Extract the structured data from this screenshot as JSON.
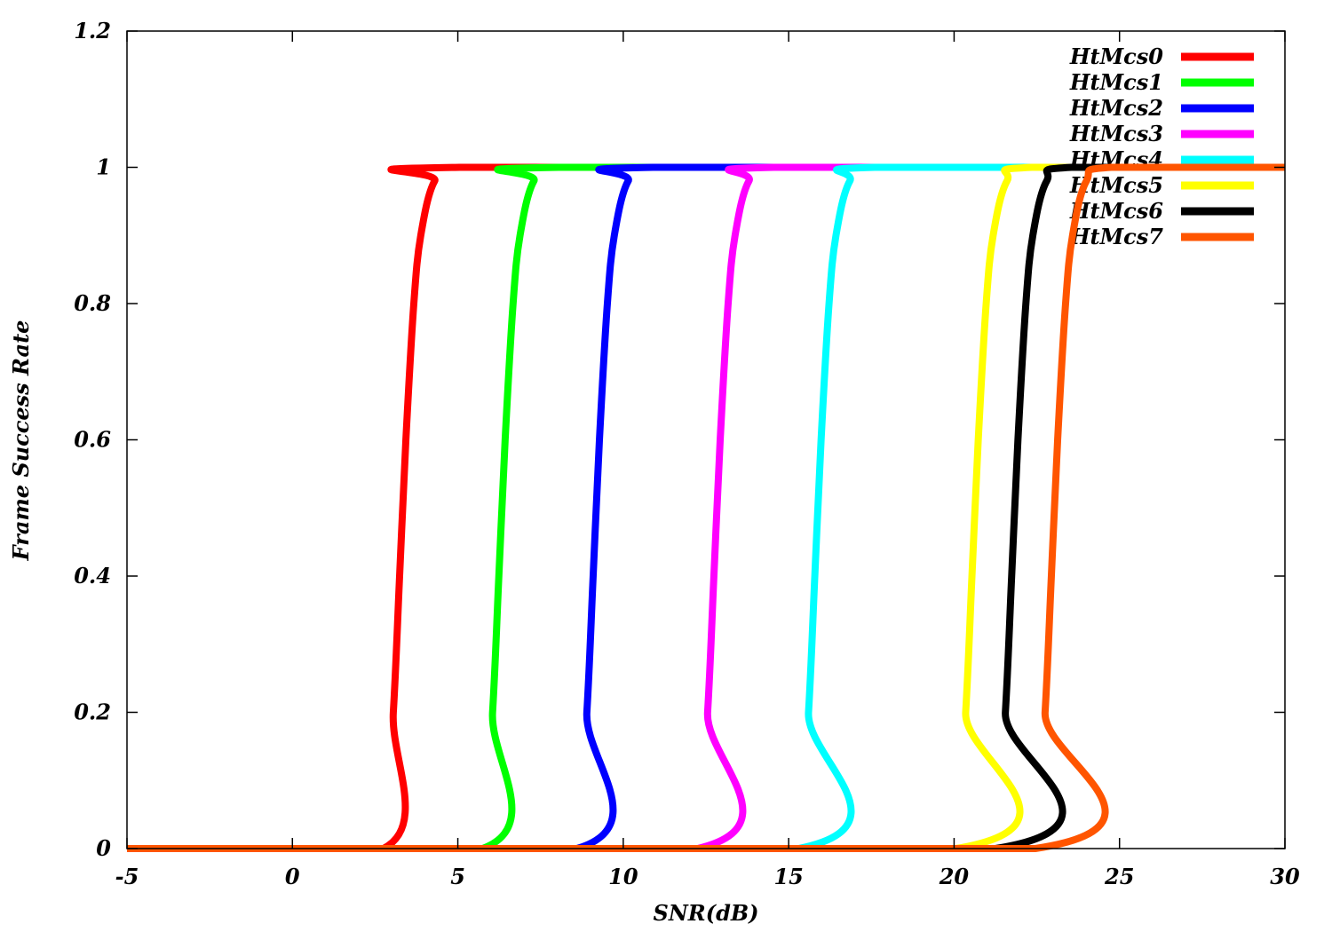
{
  "chart_data": {
    "type": "line",
    "title": "",
    "xlabel": "SNR(dB)",
    "ylabel": "Frame Success Rate",
    "xlim": [
      -5,
      30
    ],
    "ylim": [
      0,
      1.2
    ],
    "xticks": [
      "-5",
      "0",
      "5",
      "10",
      "15",
      "20",
      "25",
      "30"
    ],
    "xtick_values": [
      -5,
      0,
      5,
      10,
      15,
      20,
      25,
      30
    ],
    "yticks": [
      "0",
      "0.2",
      "0.4",
      "0.6",
      "0.8",
      "1",
      "1.2"
    ],
    "ytick_values": [
      0,
      0.2,
      0.4,
      0.6,
      0.8,
      1,
      1.2
    ],
    "grid": false,
    "legend_position": "top-right",
    "series": [
      {
        "name": "HtMcs0",
        "color": "#ff0000",
        "points": [
          [
            -5,
            0
          ],
          [
            2.75,
            0
          ],
          [
            3.05,
            0.2
          ],
          [
            3.24,
            0.4
          ],
          [
            3.43,
            0.6
          ],
          [
            3.67,
            0.8
          ],
          [
            3.88,
            0.9
          ],
          [
            4.3,
            0.98
          ],
          [
            5.05,
            1
          ],
          [
            30,
            1
          ]
        ]
      },
      {
        "name": "HtMcs1",
        "color": "#00ff00",
        "points": [
          [
            -5,
            0
          ],
          [
            5.75,
            0
          ],
          [
            6.05,
            0.2
          ],
          [
            6.24,
            0.4
          ],
          [
            6.43,
            0.6
          ],
          [
            6.67,
            0.8
          ],
          [
            6.88,
            0.9
          ],
          [
            7.3,
            0.98
          ],
          [
            8.05,
            1
          ],
          [
            30,
            1
          ]
        ]
      },
      {
        "name": "HtMcs2",
        "color": "#0000ff",
        "points": [
          [
            -5,
            0
          ],
          [
            8.6,
            0
          ],
          [
            8.9,
            0.2
          ],
          [
            9.09,
            0.4
          ],
          [
            9.28,
            0.6
          ],
          [
            9.52,
            0.8
          ],
          [
            9.73,
            0.9
          ],
          [
            10.15,
            0.98
          ],
          [
            10.9,
            1
          ],
          [
            30,
            1
          ]
        ]
      },
      {
        "name": "HtMcs3",
        "color": "#ff00ff",
        "points": [
          [
            -5,
            0
          ],
          [
            12.25,
            0
          ],
          [
            12.55,
            0.2
          ],
          [
            12.74,
            0.4
          ],
          [
            12.93,
            0.6
          ],
          [
            13.17,
            0.8
          ],
          [
            13.38,
            0.9
          ],
          [
            13.8,
            0.98
          ],
          [
            14.55,
            1
          ],
          [
            30,
            1
          ]
        ]
      },
      {
        "name": "HtMcs4",
        "color": "#00ffff",
        "points": [
          [
            -5,
            0
          ],
          [
            15.3,
            0
          ],
          [
            15.6,
            0.2
          ],
          [
            15.79,
            0.4
          ],
          [
            15.98,
            0.6
          ],
          [
            16.22,
            0.8
          ],
          [
            16.43,
            0.9
          ],
          [
            16.85,
            0.98
          ],
          [
            17.6,
            1
          ],
          [
            30,
            1
          ]
        ]
      },
      {
        "name": "HtMcs5",
        "color": "#ffff00",
        "points": [
          [
            -5,
            0
          ],
          [
            20.05,
            0
          ],
          [
            20.35,
            0.2
          ],
          [
            20.54,
            0.4
          ],
          [
            20.73,
            0.6
          ],
          [
            20.97,
            0.8
          ],
          [
            21.18,
            0.9
          ],
          [
            21.6,
            0.98
          ],
          [
            22.35,
            1
          ],
          [
            30,
            1
          ]
        ]
      },
      {
        "name": "HtMcs6",
        "color": "#000000",
        "points": [
          [
            -5,
            0
          ],
          [
            21.25,
            0
          ],
          [
            21.55,
            0.2
          ],
          [
            21.74,
            0.4
          ],
          [
            21.93,
            0.6
          ],
          [
            22.17,
            0.8
          ],
          [
            22.38,
            0.9
          ],
          [
            22.8,
            0.98
          ],
          [
            23.55,
            1
          ],
          [
            30,
            1
          ]
        ]
      },
      {
        "name": "HtMcs7",
        "color": "#ff5500",
        "points": [
          [
            -5,
            0
          ],
          [
            22.45,
            0
          ],
          [
            22.75,
            0.2
          ],
          [
            22.94,
            0.4
          ],
          [
            23.13,
            0.6
          ],
          [
            23.37,
            0.8
          ],
          [
            23.58,
            0.9
          ],
          [
            24.0,
            0.98
          ],
          [
            24.75,
            1
          ],
          [
            30,
            1
          ]
        ]
      }
    ]
  }
}
